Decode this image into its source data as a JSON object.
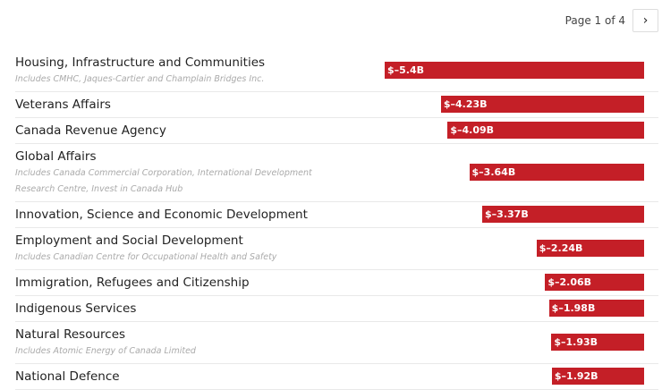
{
  "pager": {
    "text": "Page 1 of 4",
    "next_icon": "chevron-right-icon"
  },
  "chart_data": {
    "type": "bar",
    "orientation": "horizontal",
    "bar_color": "#c41f27",
    "categories": [
      {
        "name": "Housing, Infrastructure and Communities",
        "note": "Includes CMHC, Jaques-Cartier and Champlain Bridges Inc.",
        "value": -5.4,
        "label": "$–5.4B"
      },
      {
        "name": "Veterans Affairs",
        "note": "",
        "value": -4.23,
        "label": "$–4.23B"
      },
      {
        "name": "Canada Revenue Agency",
        "note": "",
        "value": -4.09,
        "label": "$–4.09B"
      },
      {
        "name": "Global Affairs",
        "note": "Includes Canada Commercial Corporation, International Development Research Centre, Invest in Canada Hub",
        "value": -3.64,
        "label": "$–3.64B"
      },
      {
        "name": "Innovation, Science and Economic Development",
        "note": "",
        "value": -3.37,
        "label": "$–3.37B"
      },
      {
        "name": "Employment and Social Development",
        "note": "Includes Canadian Centre for Occupational Health and Safety",
        "value": -2.24,
        "label": "$–2.24B"
      },
      {
        "name": "Immigration, Refugees and Citizenship",
        "note": "",
        "value": -2.06,
        "label": "$–2.06B"
      },
      {
        "name": "Indigenous Services",
        "note": "",
        "value": -1.98,
        "label": "$–1.98B"
      },
      {
        "name": "Natural Resources",
        "note": "Includes Atomic Energy of Canada Limited",
        "value": -1.93,
        "label": "$–1.93B"
      },
      {
        "name": "National Defence",
        "note": "",
        "value": -1.92,
        "label": "$–1.92B"
      }
    ]
  }
}
